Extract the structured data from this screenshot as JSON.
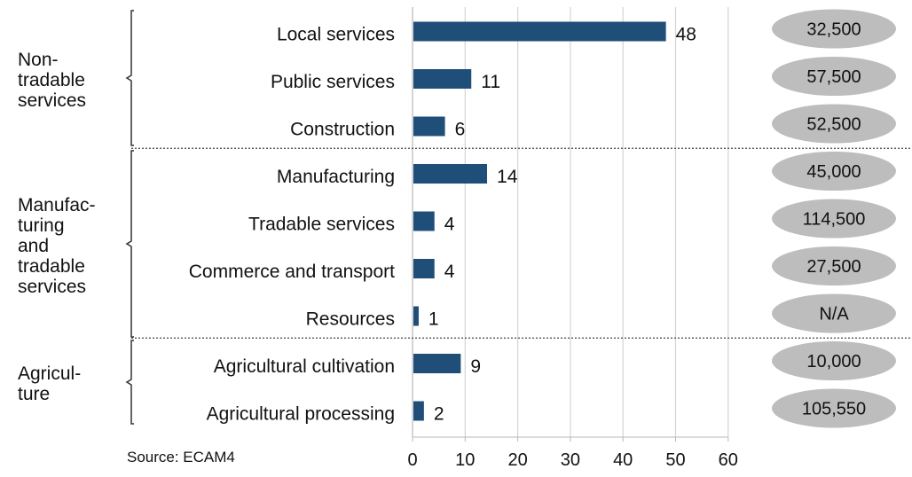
{
  "chart_data": {
    "type": "bar",
    "orientation": "horizontal",
    "categories": [
      "Local services",
      "Public services",
      "Construction",
      "Manufacturing",
      "Tradable services",
      "Commerce and transport",
      "Resources",
      "Agricultural cultivation",
      "Agricultural processing"
    ],
    "values": [
      48,
      11,
      6,
      14,
      4,
      4,
      1,
      9,
      2
    ],
    "data_labels": [
      "48",
      "11",
      "6",
      "14",
      "4",
      "4",
      "1",
      "9",
      "2"
    ],
    "side_values": [
      "32,500",
      "57,500",
      "52,500",
      "45,000",
      "114,500",
      "27,500",
      "N/A",
      "10,000",
      "105,550"
    ],
    "groups": [
      {
        "lines": [
          "Non-",
          "tradable",
          "services"
        ],
        "rows": [
          0,
          2
        ]
      },
      {
        "lines": [
          "Manufac-",
          "turing",
          "and",
          "tradable",
          "services"
        ],
        "rows": [
          3,
          6
        ]
      },
      {
        "lines": [
          "Agricul-",
          "ture"
        ],
        "rows": [
          7,
          8
        ]
      }
    ],
    "xlim": [
      0,
      60
    ],
    "xticks": [
      0,
      10,
      20,
      30,
      40,
      50,
      60
    ],
    "grid": true,
    "bar_color": "#1f4e79",
    "bubble_color": "#bdbdbd",
    "source": "Source: ECAM4"
  }
}
